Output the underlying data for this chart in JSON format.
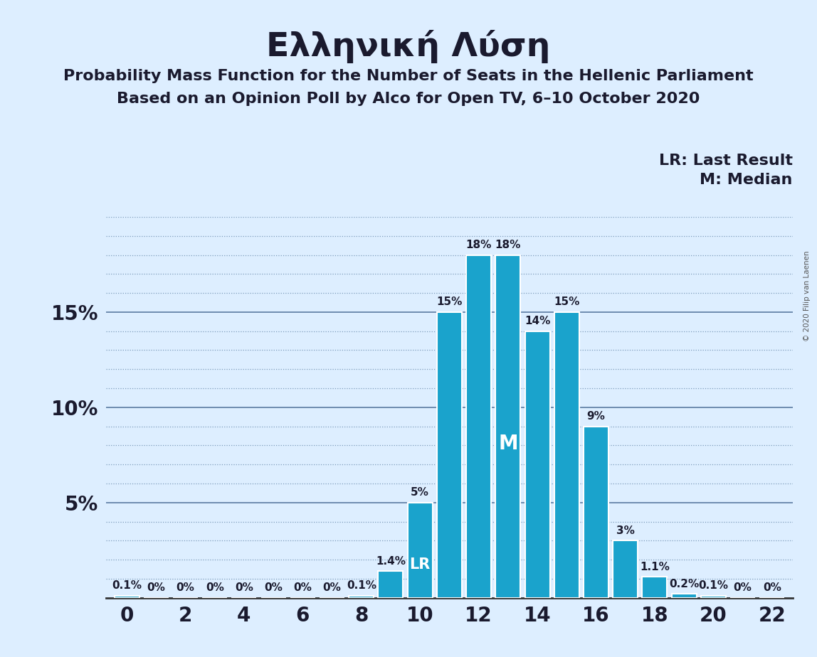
{
  "title": "Ελληνική Λύση",
  "subtitle1": "Probability Mass Function for the Number of Seats in the Hellenic Parliament",
  "subtitle2": "Based on an Opinion Poll by Alco for Open TV, 6–10 October 2020",
  "copyright": "© 2020 Filip van Laenen",
  "legend_lr": "LR: Last Result",
  "legend_m": "M: Median",
  "seats": [
    0,
    1,
    2,
    3,
    4,
    5,
    6,
    7,
    8,
    9,
    10,
    11,
    12,
    13,
    14,
    15,
    16,
    17,
    18,
    19,
    20,
    21,
    22
  ],
  "probabilities": [
    0.1,
    0,
    0,
    0,
    0,
    0,
    0,
    0,
    0.1,
    1.4,
    5,
    15,
    18,
    18,
    14,
    15,
    9,
    3,
    1.1,
    0.2,
    0.1,
    0,
    0
  ],
  "bar_color": "#1aa3cc",
  "background_color": "#ddeeff",
  "last_result": 10,
  "median": 13,
  "ylim": [
    0,
    20
  ],
  "ytick_majors": [
    5,
    10,
    15
  ],
  "ytick_major_labels": [
    "5%",
    "10%",
    "15%"
  ],
  "xticks": [
    0,
    2,
    4,
    6,
    8,
    10,
    12,
    14,
    16,
    18,
    20,
    22
  ],
  "title_fontsize": 34,
  "subtitle_fontsize": 16,
  "axis_fontsize": 20,
  "label_fontsize": 11,
  "bar_width": 0.85,
  "lr_fontsize": 15,
  "m_fontsize": 20,
  "legend_fontsize": 16
}
